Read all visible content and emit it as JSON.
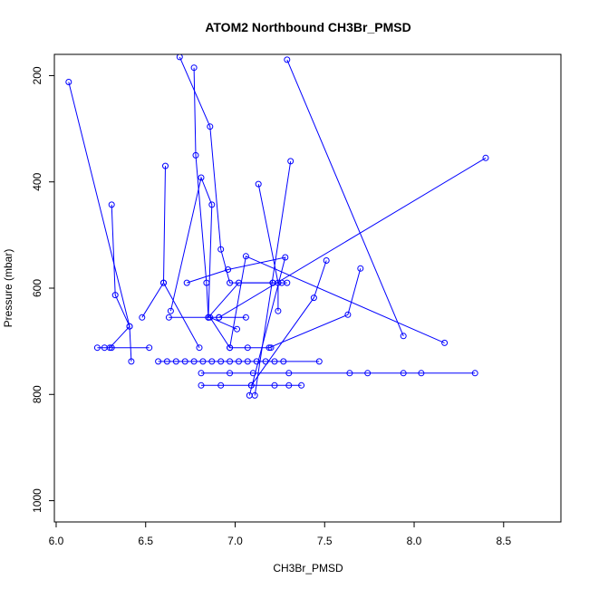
{
  "chart_data": {
    "type": "line",
    "title": "ATOM2 Northbound CH3Br_PMSD",
    "xlabel": "CH3Br_PMSD",
    "ylabel": "Pressure (mbar)",
    "xlim": [
      5.99,
      8.82
    ],
    "ylim": [
      1040,
      160
    ],
    "y_reversed": true,
    "x_ticks": [
      6.0,
      6.5,
      7.0,
      7.5,
      8.0,
      8.5
    ],
    "x_tick_labels": [
      "6.0",
      "6.5",
      "7.0",
      "7.5",
      "8.0",
      "8.5"
    ],
    "y_ticks": [
      200,
      400,
      600,
      800,
      1000
    ],
    "y_tick_labels": [
      "200",
      "400",
      "600",
      "800",
      "1000"
    ],
    "grid": false,
    "legend": false,
    "colors": {
      "series": "#0000ff",
      "axis": "#000000"
    },
    "marker": "open-circle",
    "series": [
      {
        "x": [
          6.07,
          6.41,
          6.3
        ],
        "y": [
          212,
          672,
          712
        ]
      },
      {
        "x": [
          6.31,
          6.33,
          6.41,
          6.42
        ],
        "y": [
          443,
          613,
          672,
          738
        ]
      },
      {
        "x": [
          6.61,
          6.6,
          6.48
        ],
        "y": [
          370,
          590,
          655
        ]
      },
      {
        "x": [
          6.23,
          6.27,
          6.31,
          6.52
        ],
        "y": [
          712,
          712,
          712,
          712
        ]
      },
      {
        "x": [
          6.57,
          6.62,
          6.67,
          6.72,
          6.77,
          6.82,
          6.87,
          6.92,
          6.97,
          7.02,
          7.07,
          7.12,
          7.17,
          7.22,
          7.27,
          7.47
        ],
        "y": [
          738,
          738,
          738,
          738,
          738,
          738,
          738,
          738,
          738,
          738,
          738,
          738,
          738,
          738,
          738,
          738
        ]
      },
      {
        "x": [
          6.81,
          6.92,
          7.09,
          7.22,
          7.3,
          7.37
        ],
        "y": [
          783,
          783,
          783,
          783,
          783,
          783
        ]
      },
      {
        "x": [
          6.81,
          6.97,
          7.1,
          7.3,
          7.64,
          7.74,
          7.94,
          8.04,
          8.34
        ],
        "y": [
          760,
          760,
          760,
          760,
          760,
          760,
          760,
          760,
          760
        ]
      },
      {
        "x": [
          6.69,
          6.86,
          6.92,
          6.97,
          7.21,
          7.29
        ],
        "y": [
          165,
          296,
          527,
          590,
          590,
          590
        ]
      },
      {
        "x": [
          6.77,
          6.78,
          6.84,
          6.85,
          6.91,
          7.06
        ],
        "y": [
          185,
          350,
          590,
          655,
          655,
          655
        ]
      },
      {
        "x": [
          7.13,
          7.24,
          7.24
        ],
        "y": [
          404,
          590,
          643
        ]
      },
      {
        "x": [
          7.31,
          7.11
        ],
        "y": [
          361,
          802
        ]
      },
      {
        "x": [
          7.29,
          7.94
        ],
        "y": [
          170,
          690
        ]
      },
      {
        "x": [
          7.51,
          7.44,
          7.09
        ],
        "y": [
          548,
          618,
          783
        ]
      },
      {
        "x": [
          7.7,
          7.63,
          7.19
        ],
        "y": [
          563,
          650,
          712
        ]
      },
      {
        "x": [
          8.17,
          7.06,
          6.97
        ],
        "y": [
          703,
          540,
          712
        ]
      },
      {
        "x": [
          8.4,
          6.91
        ],
        "y": [
          355,
          655
        ]
      },
      {
        "x": [
          6.85,
          6.87,
          6.81,
          6.64
        ],
        "y": [
          655,
          443,
          392,
          643
        ]
      },
      {
        "x": [
          6.73,
          6.96,
          7.28,
          7.08
        ],
        "y": [
          590,
          565,
          542,
          802
        ]
      },
      {
        "x": [
          7.01,
          6.86,
          6.97,
          7.07,
          7.2
        ],
        "y": [
          677,
          655,
          712,
          712,
          712
        ]
      },
      {
        "x": [
          6.63,
          6.85,
          7.02,
          7.21,
          7.26
        ],
        "y": [
          655,
          655,
          590,
          590,
          590
        ]
      },
      {
        "x": [
          6.6,
          6.8
        ],
        "y": [
          590,
          712
        ]
      }
    ]
  }
}
